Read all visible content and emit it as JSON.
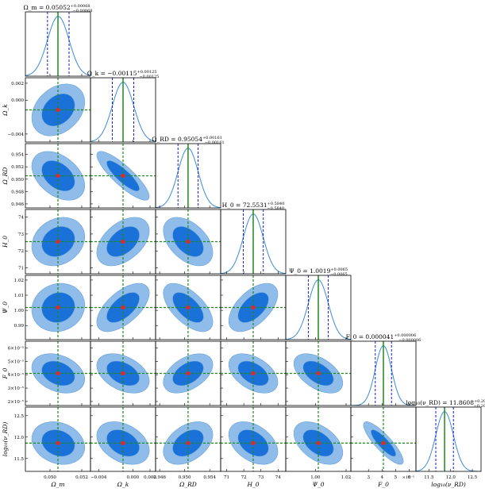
{
  "colors": {
    "outer_ellipse": "#8fbce9",
    "inner_ellipse": "#1a72d8",
    "truth_marker": "#e32a20",
    "truth_line": "#1e8a1e",
    "posterior_curve": "#3c8bd6",
    "quantile_line": "#1a1ad8",
    "spine": "#000000"
  },
  "chart_data": {
    "type": "scatter",
    "parameters": [
      {
        "label": "Ω_m",
        "title": "Ω_m = 0.05052^{+0.00068}_{−0.00068}",
        "truth": 0.0505,
        "mean": 0.05052,
        "sd": 0.00068,
        "range": [
          0.04845,
          0.05255
        ],
        "ticks": [
          0.05,
          0.052
        ],
        "tick_labels": [
          "0.050",
          "0.052"
        ]
      },
      {
        "label": "Ω_k",
        "title": "Ω_k = −0.00115^{+0.00125}_{−0.00125}",
        "truth": -0.00115,
        "mean": -0.00115,
        "sd": 0.00125,
        "range": [
          -0.00495,
          0.00265
        ],
        "ticks": [
          -0.004,
          0.0,
          0.002
        ],
        "tick_labels": [
          "−0.004",
          "0.000",
          "0.002"
        ]
      },
      {
        "label": "Ω_RD",
        "title": "Ω_RD = 0.95054^{+0.00161}_{−0.00161}",
        "truth": 0.95054,
        "mean": 0.95054,
        "sd": 0.00161,
        "range": [
          0.94535,
          0.95575
        ],
        "ticks": [
          0.946,
          0.95,
          0.954,
          0.956
        ],
        "tick_labels": [
          "0.946",
          "0.950",
          "0.954",
          "0.956"
        ],
        "y_ticks": [
          0.946,
          0.948,
          0.95,
          0.952,
          0.954,
          0.956
        ],
        "y_tick_labels": [
          "0.946",
          "0.948",
          "0.950",
          "0.952",
          "0.954",
          "0.956"
        ]
      },
      {
        "label": "H_0",
        "title": "H_0 = 72.5531^{+0.5840}_{−0.5840}",
        "truth": 72.55,
        "mean": 72.5531,
        "sd": 0.584,
        "range": [
          70.65,
          74.45
        ],
        "ticks": [
          71,
          72,
          73,
          74
        ],
        "tick_labels": [
          "71",
          "72",
          "73",
          "74"
        ]
      },
      {
        "label": "Ψ_0",
        "title": "Ψ_0 = 1.0019^{+0.0065}_{−0.0065}",
        "truth": 1.0019,
        "mean": 1.0019,
        "sd": 0.0065,
        "range": [
          0.9807,
          1.0231
        ],
        "ticks": [
          0.98,
          1.0,
          1.02
        ],
        "tick_labels": [
          "0.98",
          "1.00",
          "1.02"
        ],
        "y_ticks": [
          0.98,
          0.99,
          1.0,
          1.01,
          1.02
        ],
        "y_tick_labels": [
          "0.98",
          "0.99",
          "1.00",
          "1.01",
          "1.02"
        ]
      },
      {
        "label": "F_0",
        "title": "F_0 = 0.000041^{+0.000006}_{−0.000006}",
        "truth": 4.1e-05,
        "mean": 4.1e-05,
        "sd": 6e-06,
        "range": [
          1.7e-05,
          6.5e-05
        ],
        "ticks": [
          3e-05,
          4e-05,
          5e-05,
          6e-05
        ],
        "tick_labels": [
          "3",
          "4",
          "5",
          "6"
        ],
        "y_ticks": [
          2e-05,
          3e-05,
          4e-05,
          5e-05,
          6e-05
        ],
        "y_tick_labels": [
          "2×10⁻⁵",
          "3×10⁻⁵",
          "4×10⁻⁵",
          "5×10⁻⁵",
          "6×10⁻⁵"
        ],
        "offset_label": "×10⁻⁵"
      },
      {
        "label": "log₁₀(ν_RD)",
        "title": "log₁₀(ν_RD) = 11.8608^{+0.2032}_{−0.2032}",
        "truth": 11.86,
        "mean": 11.8608,
        "sd": 0.2032,
        "range": [
          11.2,
          12.7
        ],
        "ticks": [
          11.5,
          12.0,
          12.5
        ],
        "tick_labels": [
          "11.5",
          "12.0",
          "12.5"
        ]
      }
    ],
    "correlations": [
      [
        1,
        0.3,
        -0.4,
        0.2,
        0.1,
        -0.3,
        -0.2
      ],
      [
        0.3,
        1,
        -0.85,
        0.45,
        0.6,
        -0.4,
        -0.35
      ],
      [
        -0.4,
        -0.85,
        1,
        -0.45,
        -0.6,
        0.45,
        0.4
      ],
      [
        0.2,
        0.45,
        -0.45,
        1,
        0.55,
        -0.45,
        -0.4
      ],
      [
        0.1,
        0.6,
        -0.6,
        0.55,
        1,
        -0.5,
        -0.45
      ],
      [
        -0.3,
        -0.4,
        0.45,
        -0.45,
        -0.5,
        1,
        -0.85
      ],
      [
        -0.2,
        -0.35,
        0.4,
        -0.4,
        -0.45,
        -0.85,
        1
      ]
    ]
  }
}
